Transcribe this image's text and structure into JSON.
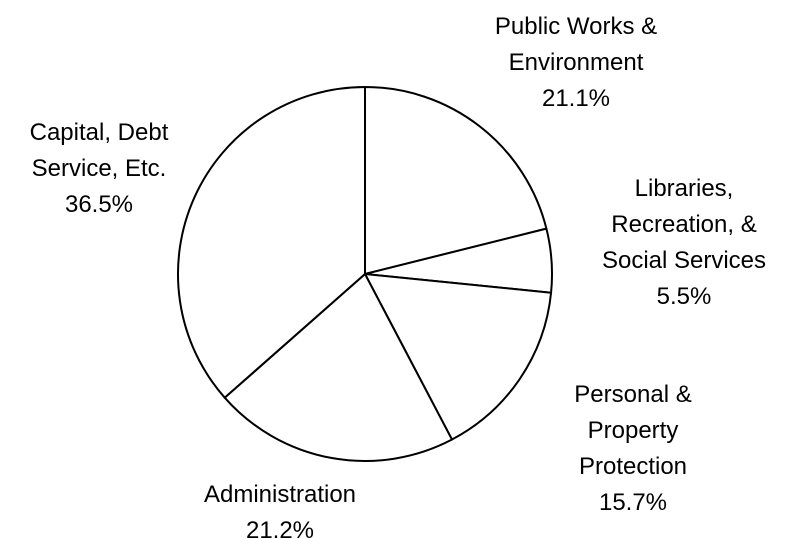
{
  "chart_data": {
    "type": "pie",
    "title": "",
    "start_angle_deg": 0,
    "direction": "clockwise",
    "legend": "none",
    "slices": [
      {
        "label_lines": [
          "Public Works &",
          "Environment"
        ],
        "value": 21.1,
        "value_label": "21.1%"
      },
      {
        "label_lines": [
          "Libraries,",
          "Recreation, &",
          "Social Services"
        ],
        "value": 5.5,
        "value_label": "5.5%"
      },
      {
        "label_lines": [
          "Personal &",
          "Property",
          "Protection"
        ],
        "value": 15.7,
        "value_label": "15.7%"
      },
      {
        "label_lines": [
          "Administration"
        ],
        "value": 21.2,
        "value_label": "21.2%"
      },
      {
        "label_lines": [
          "Capital, Debt",
          "Service, Etc."
        ],
        "value": 36.5,
        "value_label": "36.5%"
      }
    ]
  },
  "colors": {
    "slice_fill": "#ffffff",
    "slice_stroke": "#000000",
    "text": "#000000"
  }
}
